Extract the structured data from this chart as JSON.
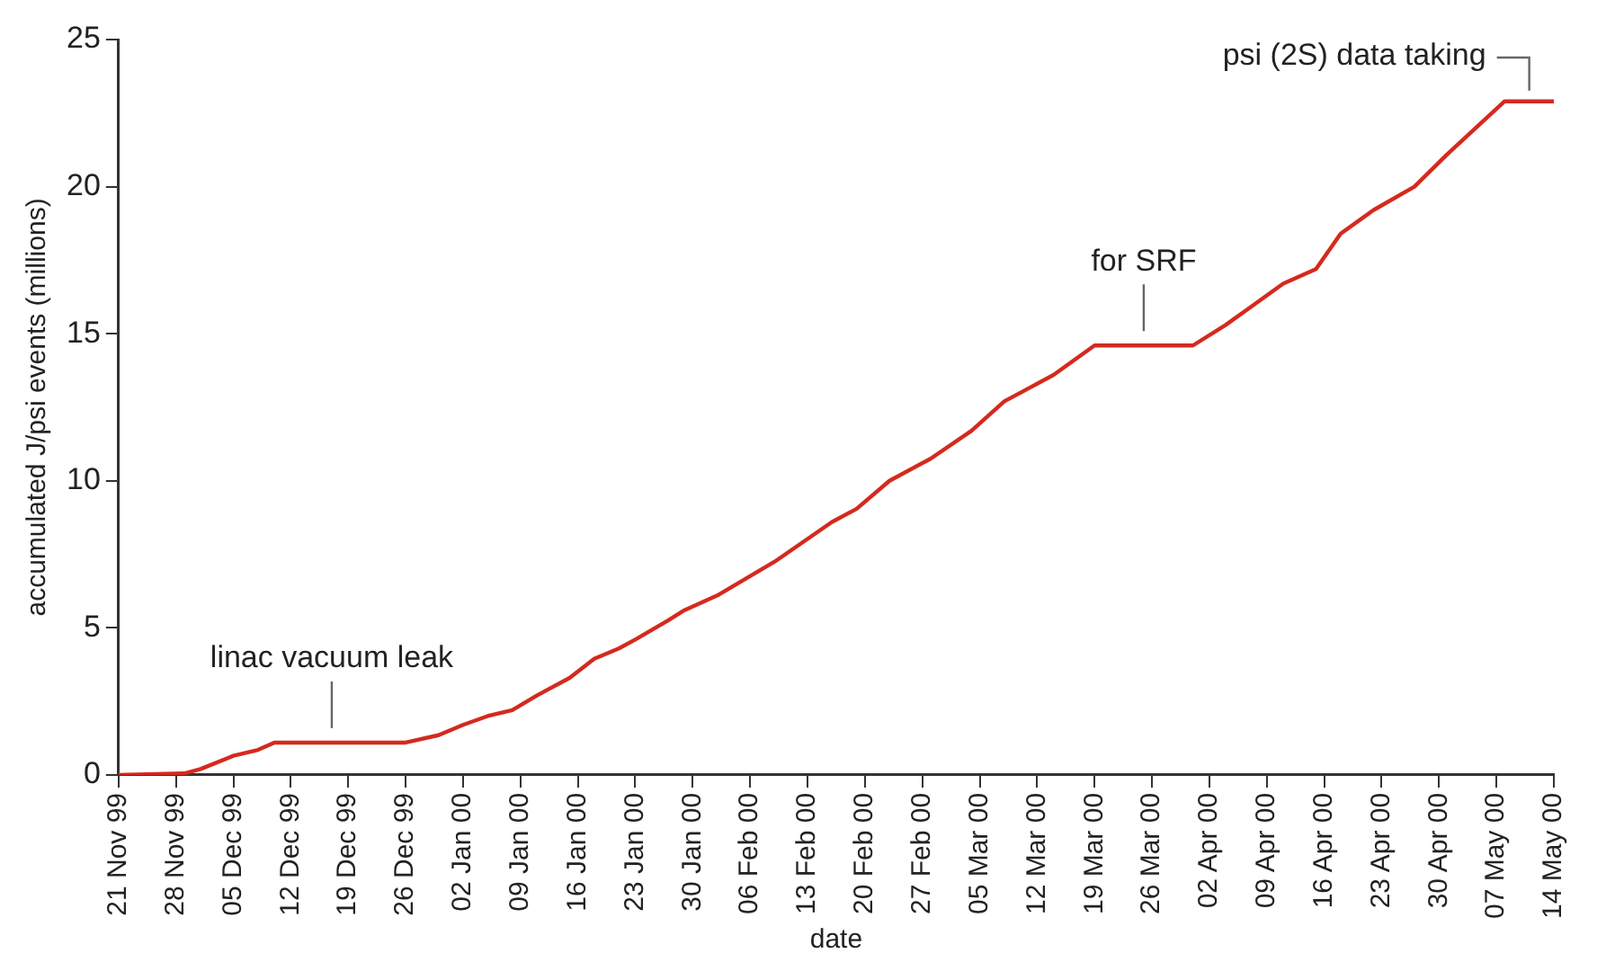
{
  "chart_data": {
    "type": "line",
    "xlabel": "date",
    "ylabel": "accumulated J/psi events (millions)",
    "series": [
      {
        "color": "#d42a1e",
        "x": [
          "1999-11-21",
          "1999-11-29",
          "1999-12-01",
          "1999-12-05",
          "1999-12-08",
          "1999-12-10",
          "1999-12-26",
          "1999-12-30",
          "2000-01-02",
          "2000-01-05",
          "2000-01-08",
          "2000-01-11",
          "2000-01-15",
          "2000-01-18",
          "2000-01-21",
          "2000-01-23",
          "2000-01-27",
          "2000-01-29",
          "2000-02-02",
          "2000-02-09",
          "2000-02-16",
          "2000-02-19",
          "2000-02-23",
          "2000-02-28",
          "2000-03-04",
          "2000-03-08",
          "2000-03-10",
          "2000-03-14",
          "2000-03-19",
          "2000-03-31",
          "2000-04-04",
          "2000-04-07",
          "2000-04-11",
          "2000-04-15",
          "2000-04-18",
          "2000-04-22",
          "2000-04-27",
          "2000-05-01",
          "2000-05-08",
          "2000-05-14"
        ],
        "values": [
          0,
          0.05,
          0.2,
          0.65,
          0.85,
          1.1,
          1.1,
          1.35,
          1.7,
          2.0,
          2.2,
          2.7,
          3.3,
          3.95,
          4.3,
          4.6,
          5.25,
          5.6,
          6.1,
          7.25,
          8.6,
          9.05,
          10.0,
          10.75,
          11.7,
          12.7,
          13.0,
          13.6,
          14.6,
          14.6,
          15.3,
          15.9,
          16.7,
          17.2,
          18.4,
          19.2,
          20.0,
          21.1,
          22.9,
          22.9
        ]
      }
    ],
    "xlim": [
      "1999-11-21",
      "2000-05-14"
    ],
    "xticks": [
      {
        "value": "1999-11-21",
        "label": "21 Nov 99"
      },
      {
        "value": "1999-11-28",
        "label": "28 Nov 99"
      },
      {
        "value": "1999-12-05",
        "label": "05 Dec 99"
      },
      {
        "value": "1999-12-12",
        "label": "12 Dec 99"
      },
      {
        "value": "1999-12-19",
        "label": "19 Dec 99"
      },
      {
        "value": "1999-12-26",
        "label": "26 Dec 99"
      },
      {
        "value": "2000-01-02",
        "label": "02 Jan 00"
      },
      {
        "value": "2000-01-09",
        "label": "09 Jan 00"
      },
      {
        "value": "2000-01-16",
        "label": "16 Jan 00"
      },
      {
        "value": "2000-01-23",
        "label": "23 Jan 00"
      },
      {
        "value": "2000-01-30",
        "label": "30 Jan 00"
      },
      {
        "value": "2000-02-06",
        "label": "06 Feb 00"
      },
      {
        "value": "2000-02-13",
        "label": "13 Feb 00"
      },
      {
        "value": "2000-02-20",
        "label": "20 Feb 00"
      },
      {
        "value": "2000-02-27",
        "label": "27 Feb 00"
      },
      {
        "value": "2000-03-05",
        "label": "05 Mar 00"
      },
      {
        "value": "2000-03-12",
        "label": "12 Mar 00"
      },
      {
        "value": "2000-03-19",
        "label": "19 Mar 00"
      },
      {
        "value": "2000-03-26",
        "label": "26 Mar 00"
      },
      {
        "value": "2000-04-02",
        "label": "02 Apr 00"
      },
      {
        "value": "2000-04-09",
        "label": "09 Apr 00"
      },
      {
        "value": "2000-04-16",
        "label": "16 Apr 00"
      },
      {
        "value": "2000-04-23",
        "label": "23 Apr 00"
      },
      {
        "value": "2000-04-30",
        "label": "30 Apr 00"
      },
      {
        "value": "2000-05-07",
        "label": "07 May 00"
      },
      {
        "value": "2000-05-14",
        "label": "14 May 00"
      }
    ],
    "ylim": [
      0,
      25
    ],
    "yticks": [
      0,
      5,
      10,
      15,
      20,
      25
    ],
    "grid": false,
    "legend": false,
    "marker": "none",
    "line_style": "solid",
    "annotations": [
      {
        "text": "linac vacuum leak",
        "x": "1999-12-17",
        "y": 1.1
      },
      {
        "text": "for SRF",
        "x": "2000-03-25",
        "y": 14.6
      },
      {
        "text": "psi (2S) data taking",
        "x": "2000-05-11",
        "y": 22.9
      }
    ]
  }
}
